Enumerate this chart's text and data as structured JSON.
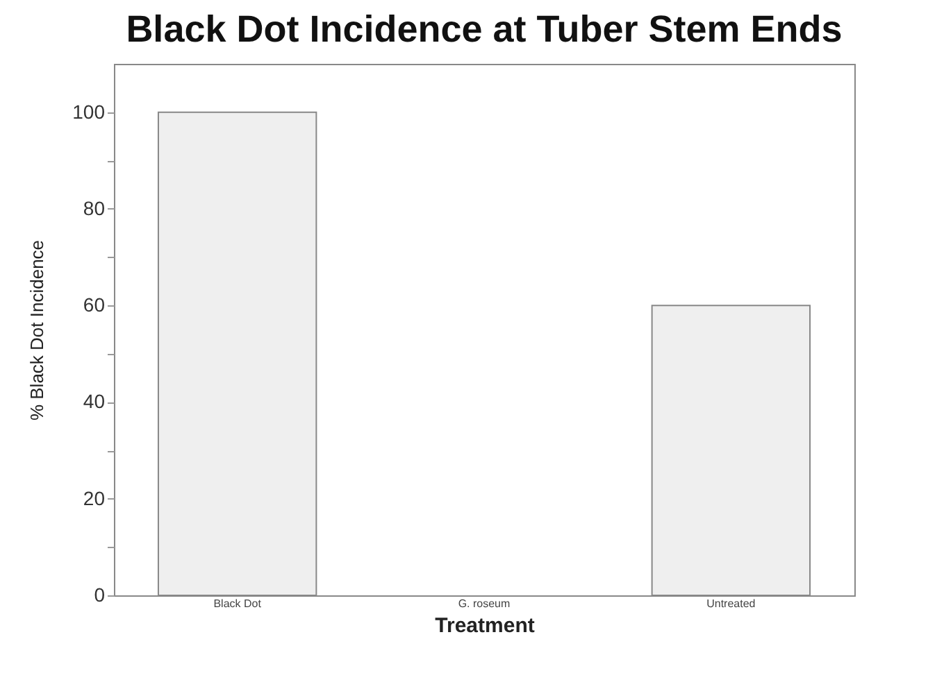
{
  "chart_data": {
    "type": "bar",
    "title": "Black Dot Incidence at Tuber Stem Ends",
    "xlabel": "Treatment",
    "ylabel": "% Black Dot Incidence",
    "categories": [
      "Black Dot",
      "G. roseum",
      "Untreated"
    ],
    "values": [
      100,
      0,
      60
    ],
    "color": "#efefef",
    "ylim": [
      0,
      110
    ],
    "yticks": [
      0,
      {
        "value": 10,
        "label": null
      },
      20,
      {
        "value": 30,
        "label": null
      },
      40,
      {
        "value": 50,
        "label": null
      },
      60,
      {
        "value": 70,
        "label": null
      },
      80,
      {
        "value": 90,
        "label": null
      },
      100
    ],
    "grid": false
  }
}
